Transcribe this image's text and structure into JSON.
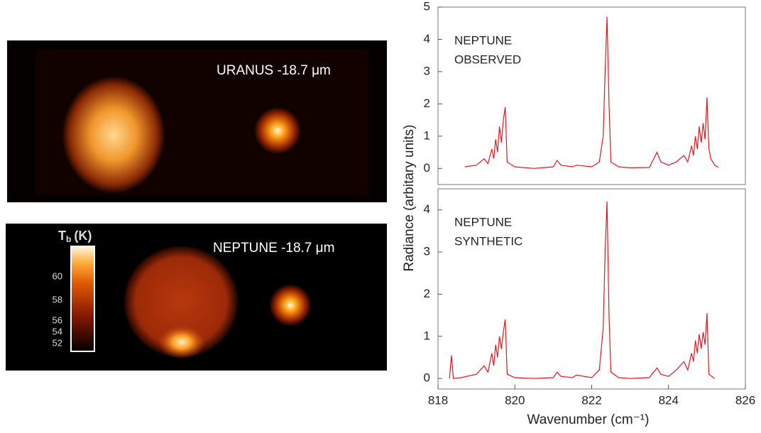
{
  "images": [
    {
      "label": "URANUS -18.7 μm"
    },
    {
      "label": "NEPTUNE -18.7 μm",
      "colorbar": {
        "symbol": "T",
        "subscript": "b",
        "unit": "(K)",
        "ticks": [
          60,
          58,
          56,
          54,
          52
        ]
      }
    }
  ],
  "chart_data": [
    {
      "type": "line",
      "annotations": [
        "NEPTUNE",
        "OBSERVED"
      ],
      "ylabel": "Radiance (arbitary units)",
      "color": "#e8141c",
      "xlim": [
        818,
        826
      ],
      "ylim": [
        -0.5,
        5
      ],
      "yticks": [
        0,
        1,
        2,
        3,
        4,
        5
      ],
      "x": [
        818.7,
        819.0,
        819.2,
        819.3,
        819.4,
        819.45,
        819.5,
        819.55,
        819.6,
        819.65,
        819.7,
        819.75,
        819.8,
        820.0,
        820.5,
        821.0,
        821.1,
        821.2,
        821.5,
        821.6,
        822.0,
        822.2,
        822.3,
        822.35,
        822.4,
        822.45,
        822.5,
        822.7,
        823.0,
        823.5,
        823.7,
        823.8,
        824.0,
        824.2,
        824.4,
        824.5,
        824.6,
        824.65,
        824.7,
        824.75,
        824.8,
        824.85,
        824.9,
        824.95,
        825.0,
        825.05,
        825.1,
        825.2,
        825.3
      ],
      "values": [
        0.05,
        0.1,
        0.3,
        0.15,
        0.6,
        0.3,
        0.9,
        0.5,
        1.3,
        0.8,
        1.5,
        1.9,
        0.2,
        0.05,
        0.0,
        0.05,
        0.25,
        0.1,
        0.05,
        0.1,
        0.05,
        0.2,
        1.0,
        3.0,
        4.7,
        2.0,
        0.2,
        0.05,
        0.02,
        0.03,
        0.5,
        0.2,
        0.1,
        0.2,
        0.4,
        0.2,
        0.7,
        0.4,
        1.0,
        0.6,
        1.3,
        0.8,
        1.4,
        0.9,
        2.2,
        0.6,
        0.3,
        0.1,
        0.03
      ]
    },
    {
      "type": "line",
      "annotations": [
        "NEPTUNE",
        "SYNTHETIC"
      ],
      "xlabel": "Wavenumber (cm⁻¹)",
      "color": "#e8141c",
      "xlim": [
        818,
        826
      ],
      "ylim": [
        -0.25,
        4.5
      ],
      "xticks": [
        818,
        820,
        822,
        824,
        826
      ],
      "yticks": [
        0,
        1,
        2,
        3,
        4
      ],
      "x": [
        818.3,
        818.35,
        818.4,
        818.6,
        819.0,
        819.2,
        819.3,
        819.4,
        819.45,
        819.5,
        819.55,
        819.6,
        819.65,
        819.7,
        819.75,
        819.8,
        820.0,
        820.5,
        821.0,
        821.1,
        821.2,
        821.5,
        821.6,
        822.0,
        822.2,
        822.3,
        822.35,
        822.4,
        822.45,
        822.5,
        822.7,
        823.0,
        823.5,
        823.7,
        823.8,
        824.0,
        824.2,
        824.4,
        824.5,
        824.6,
        824.65,
        824.7,
        824.75,
        824.8,
        824.85,
        824.9,
        824.95,
        825.0,
        825.05,
        825.2
      ],
      "values": [
        0.0,
        0.55,
        0.0,
        0.02,
        0.1,
        0.3,
        0.15,
        0.6,
        0.3,
        0.8,
        0.5,
        1.0,
        0.7,
        1.1,
        1.4,
        0.1,
        0.02,
        0.0,
        0.02,
        0.15,
        0.05,
        0.02,
        0.08,
        0.02,
        0.2,
        1.2,
        3.0,
        4.2,
        1.5,
        0.15,
        0.02,
        0.0,
        0.02,
        0.25,
        0.1,
        0.05,
        0.2,
        0.4,
        0.2,
        0.6,
        0.4,
        0.9,
        0.6,
        1.05,
        0.7,
        1.1,
        0.8,
        1.55,
        0.1,
        0.0
      ]
    }
  ]
}
